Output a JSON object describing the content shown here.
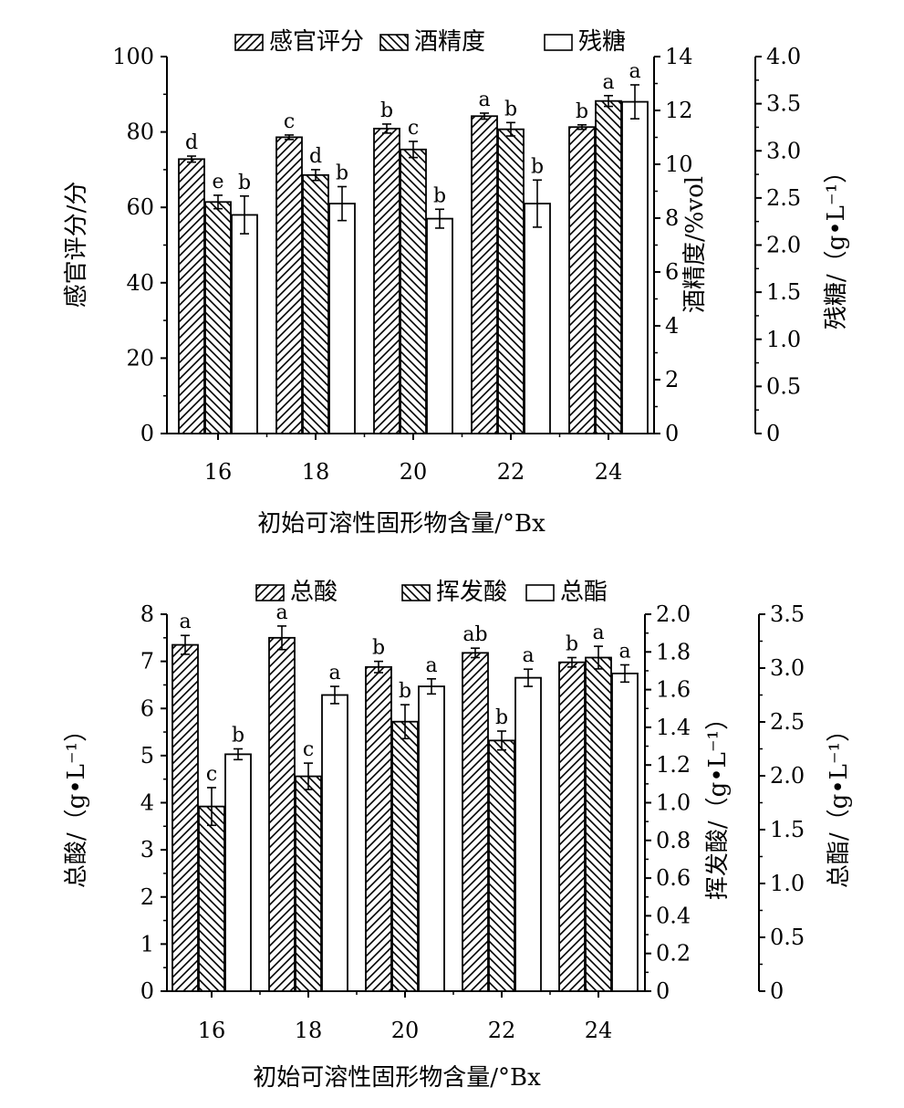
{
  "chart_data": [
    {
      "type": "bar",
      "categories": [
        "16",
        "18",
        "20",
        "22",
        "24"
      ],
      "xlabel": "初始可溶性固形物含量/°Bx",
      "legend_position": "top",
      "grid": false,
      "axes": [
        {
          "ylabel": "感官评分/分",
          "ylim": [
            0,
            100
          ],
          "ticks": [
            "0",
            "20",
            "40",
            "60",
            "80",
            "100"
          ],
          "position": "left"
        },
        {
          "ylabel": "酒精度/%vol",
          "ylim": [
            0,
            14
          ],
          "ticks": [
            "0",
            "2",
            "4",
            "6",
            "8",
            "10",
            "12",
            "14"
          ],
          "position": "right"
        },
        {
          "ylabel": "残糖/（g•L⁻¹）",
          "ylim": [
            0,
            4.0
          ],
          "ticks": [
            "0",
            "0.5",
            "1.0",
            "1.5",
            "2.0",
            "2.5",
            "3.0",
            "3.5",
            "4.0"
          ],
          "position": "right-outer"
        }
      ],
      "series": [
        {
          "name": "感官评分",
          "axis": 0,
          "pattern": "forward-hatch",
          "values": [
            72.8,
            78.6,
            80.9,
            84.2,
            81.3
          ],
          "errors": [
            0.8,
            0.6,
            1.2,
            0.8,
            0.6
          ],
          "labels": [
            "d",
            "c",
            "b",
            "a",
            "b"
          ]
        },
        {
          "name": "酒精度",
          "axis": 1,
          "pattern": "back-hatch",
          "values": [
            8.6,
            9.6,
            10.55,
            11.3,
            12.35
          ],
          "errors": [
            0.25,
            0.2,
            0.3,
            0.25,
            0.2
          ],
          "labels": [
            "e",
            "d",
            "c",
            "b",
            "a"
          ]
        },
        {
          "name": "残糖",
          "axis": 2,
          "pattern": "none",
          "values": [
            2.32,
            2.44,
            2.28,
            2.44,
            3.52
          ],
          "errors": [
            0.2,
            0.18,
            0.1,
            0.25,
            0.18
          ],
          "labels": [
            "b",
            "b",
            "b",
            "b",
            "a"
          ]
        }
      ]
    },
    {
      "type": "bar",
      "categories": [
        "16",
        "18",
        "20",
        "22",
        "24"
      ],
      "xlabel": "初始可溶性固形物含量/°Bx",
      "legend_position": "top",
      "grid": false,
      "axes": [
        {
          "ylabel": "总酸/（g•L⁻¹）",
          "ylim": [
            0,
            8
          ],
          "ticks": [
            "0",
            "1",
            "2",
            "3",
            "4",
            "5",
            "6",
            "7",
            "8"
          ],
          "position": "left"
        },
        {
          "ylabel": "挥发酸/（g•L⁻¹）",
          "ylim": [
            0,
            2.0
          ],
          "ticks": [
            "0",
            "0.2",
            "0.4",
            "0.6",
            "0.8",
            "1.0",
            "1.2",
            "1.4",
            "1.6",
            "1.8",
            "2.0"
          ],
          "position": "right"
        },
        {
          "ylabel": "总酯/（g•L⁻¹）",
          "ylim": [
            0,
            3.5
          ],
          "ticks": [
            "0",
            "0.5",
            "1.0",
            "1.5",
            "2.0",
            "2.5",
            "3.0",
            "3.5"
          ],
          "position": "right-outer"
        }
      ],
      "series": [
        {
          "name": "总酸",
          "axis": 0,
          "pattern": "forward-hatch",
          "values": [
            7.35,
            7.5,
            6.88,
            7.18,
            6.98
          ],
          "errors": [
            0.2,
            0.25,
            0.12,
            0.1,
            0.1
          ],
          "labels": [
            "a",
            "a",
            "b",
            "ab",
            "b"
          ]
        },
        {
          "name": "挥发酸",
          "axis": 1,
          "pattern": "back-hatch",
          "values": [
            0.98,
            1.14,
            1.43,
            1.33,
            1.77
          ],
          "errors": [
            0.1,
            0.07,
            0.09,
            0.05,
            0.06
          ],
          "labels": [
            "c",
            "c",
            "b",
            "b",
            "a"
          ]
        },
        {
          "name": "总酯",
          "axis": 2,
          "pattern": "none",
          "values": [
            2.2,
            2.75,
            2.83,
            2.91,
            2.95
          ],
          "errors": [
            0.05,
            0.08,
            0.07,
            0.08,
            0.08
          ],
          "labels": [
            "b",
            "a",
            "a",
            "a",
            "a"
          ]
        }
      ]
    }
  ]
}
